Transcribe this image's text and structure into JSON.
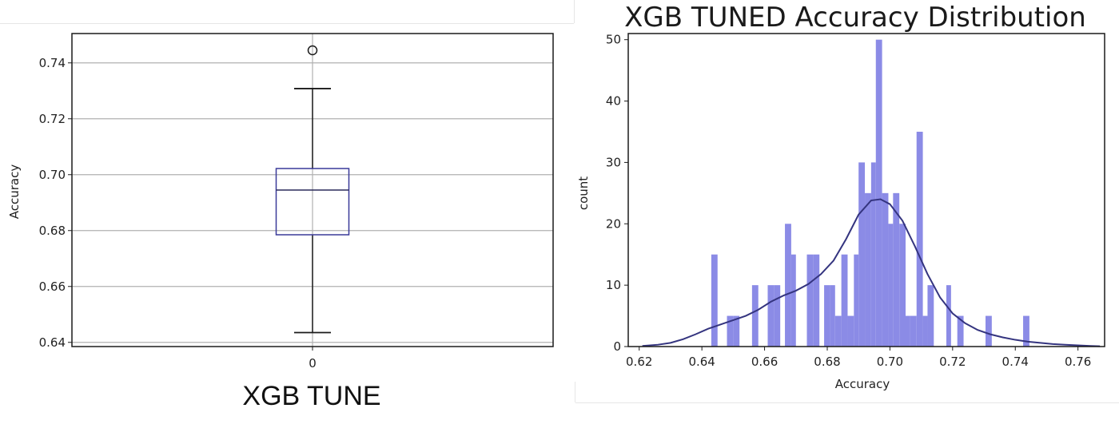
{
  "chart_data": [
    {
      "type": "box",
      "caption": "XGB TUNE",
      "ylabel": "Accuracy",
      "ylim": [
        0.6385,
        0.7505
      ],
      "yticks": [
        0.64,
        0.66,
        0.68,
        0.7,
        0.72,
        0.74
      ],
      "ytick_labels": [
        "0.64",
        "0.66",
        "0.68",
        "0.70",
        "0.72",
        "0.74"
      ],
      "categories": [
        "0"
      ],
      "grid": true,
      "box": {
        "whisker_low": 0.6435,
        "q1": 0.6785,
        "median": 0.6945,
        "q3": 0.7022,
        "whisker_high": 0.7308,
        "outliers": [
          0.7445
        ]
      },
      "colors": {
        "box": "#3a3a99",
        "whisker": "#1a1a1a",
        "grid": "#b0b0b0"
      }
    },
    {
      "type": "histogram",
      "title": "XGB TUNED Accuracy Distribution",
      "xlabel": "Accuracy",
      "ylabel": "count",
      "xlim": [
        0.6165,
        0.7685
      ],
      "ylim": [
        0,
        51
      ],
      "xticks": [
        0.62,
        0.64,
        0.66,
        0.68,
        0.7,
        0.72,
        0.74,
        0.76
      ],
      "xtick_labels": [
        "0.62",
        "0.64",
        "0.66",
        "0.68",
        "0.70",
        "0.72",
        "0.74",
        "0.76"
      ],
      "yticks": [
        0,
        10,
        20,
        30,
        40,
        50
      ],
      "ytick_labels": [
        "0",
        "10",
        "20",
        "30",
        "40",
        "50"
      ],
      "bins": [
        {
          "x0": 0.643,
          "x1": 0.645,
          "count": 15
        },
        {
          "x0": 0.648,
          "x1": 0.65,
          "count": 5
        },
        {
          "x0": 0.65,
          "x1": 0.652,
          "count": 5
        },
        {
          "x0": 0.656,
          "x1": 0.658,
          "count": 10
        },
        {
          "x0": 0.661,
          "x1": 0.663,
          "count": 10
        },
        {
          "x0": 0.663,
          "x1": 0.665,
          "count": 10
        },
        {
          "x0": 0.6665,
          "x1": 0.6685,
          "count": 20
        },
        {
          "x0": 0.6685,
          "x1": 0.67,
          "count": 15
        },
        {
          "x0": 0.6735,
          "x1": 0.6755,
          "count": 15
        },
        {
          "x0": 0.6755,
          "x1": 0.6775,
          "count": 15
        },
        {
          "x0": 0.679,
          "x1": 0.681,
          "count": 10
        },
        {
          "x0": 0.681,
          "x1": 0.6825,
          "count": 10
        },
        {
          "x0": 0.6825,
          "x1": 0.6845,
          "count": 5
        },
        {
          "x0": 0.6845,
          "x1": 0.6865,
          "count": 15
        },
        {
          "x0": 0.6865,
          "x1": 0.6885,
          "count": 5
        },
        {
          "x0": 0.6885,
          "x1": 0.69,
          "count": 15
        },
        {
          "x0": 0.69,
          "x1": 0.692,
          "count": 30
        },
        {
          "x0": 0.692,
          "x1": 0.694,
          "count": 25
        },
        {
          "x0": 0.694,
          "x1": 0.6955,
          "count": 30
        },
        {
          "x0": 0.6955,
          "x1": 0.6975,
          "count": 50
        },
        {
          "x0": 0.6975,
          "x1": 0.6995,
          "count": 25
        },
        {
          "x0": 0.6995,
          "x1": 0.701,
          "count": 20
        },
        {
          "x0": 0.701,
          "x1": 0.703,
          "count": 25
        },
        {
          "x0": 0.703,
          "x1": 0.705,
          "count": 20
        },
        {
          "x0": 0.705,
          "x1": 0.7065,
          "count": 5
        },
        {
          "x0": 0.7065,
          "x1": 0.7085,
          "count": 5
        },
        {
          "x0": 0.7085,
          "x1": 0.7105,
          "count": 35
        },
        {
          "x0": 0.7105,
          "x1": 0.712,
          "count": 5
        },
        {
          "x0": 0.712,
          "x1": 0.714,
          "count": 10
        },
        {
          "x0": 0.718,
          "x1": 0.7195,
          "count": 10
        },
        {
          "x0": 0.7215,
          "x1": 0.7235,
          "count": 5
        },
        {
          "x0": 0.7305,
          "x1": 0.7325,
          "count": 5
        },
        {
          "x0": 0.7425,
          "x1": 0.7445,
          "count": 5
        }
      ],
      "kde": {
        "x": [
          0.621,
          0.626,
          0.63,
          0.634,
          0.638,
          0.642,
          0.646,
          0.65,
          0.654,
          0.658,
          0.662,
          0.666,
          0.67,
          0.674,
          0.678,
          0.682,
          0.686,
          0.69,
          0.694,
          0.697,
          0.7,
          0.704,
          0.708,
          0.712,
          0.716,
          0.72,
          0.724,
          0.728,
          0.732,
          0.736,
          0.74,
          0.744,
          0.748,
          0.752,
          0.756,
          0.76,
          0.764,
          0.767
        ],
        "y": [
          0.1,
          0.3,
          0.6,
          1.2,
          2.0,
          2.9,
          3.6,
          4.3,
          5.0,
          6.0,
          7.3,
          8.3,
          9.1,
          10.2,
          11.8,
          14.0,
          17.5,
          21.5,
          23.8,
          24.0,
          23.2,
          20.5,
          16.3,
          11.8,
          8.0,
          5.4,
          3.8,
          2.7,
          2.0,
          1.5,
          1.1,
          0.8,
          0.6,
          0.4,
          0.3,
          0.2,
          0.1,
          0.05
        ]
      },
      "colors": {
        "bars": "#8b8be6",
        "kde": "#34347f"
      }
    }
  ]
}
